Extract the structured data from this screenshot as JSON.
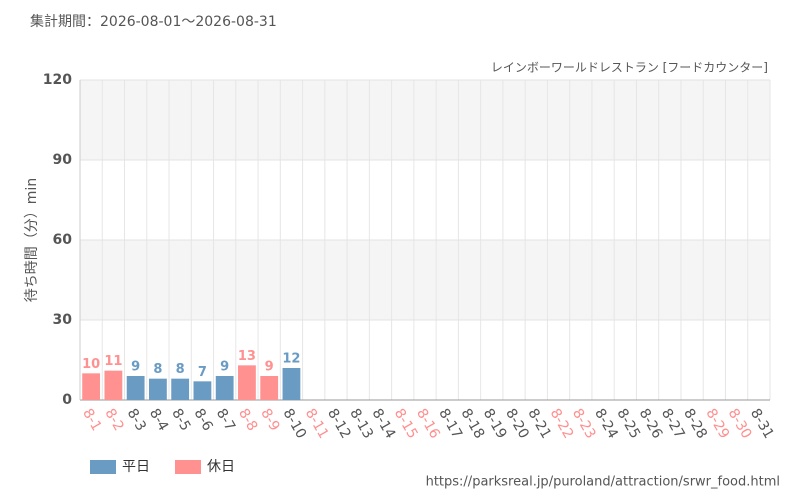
{
  "chart_data": {
    "type": "bar",
    "title": "集計期間：2026-08-01～2026-08-31",
    "subtitle": "レインボーワールドレストラン [フードカウンター]",
    "y_label": "待ち時間（分）min",
    "source": "https://parksreal.jp/puroland/attraction/srwr_food.html",
    "categories": [
      "8-1",
      "8-2",
      "8-3",
      "8-4",
      "8-5",
      "8-6",
      "8-7",
      "8-8",
      "8-9",
      "8-10",
      "8-11",
      "8-12",
      "8-13",
      "8-14",
      "8-15",
      "8-16",
      "8-17",
      "8-18",
      "8-19",
      "8-20",
      "8-21",
      "8-22",
      "8-23",
      "8-24",
      "8-25",
      "8-26",
      "8-27",
      "8-28",
      "8-29",
      "8-30",
      "8-31"
    ],
    "category_colors": [
      "#ff8f8f",
      "#ff8f8f",
      "#555555",
      "#555555",
      "#555555",
      "#555555",
      "#555555",
      "#ff8f8f",
      "#ff8f8f",
      "#555555",
      "#ff8f8f",
      "#555555",
      "#555555",
      "#555555",
      "#ff8f8f",
      "#ff8f8f",
      "#555555",
      "#555555",
      "#555555",
      "#555555",
      "#555555",
      "#ff8f8f",
      "#ff8f8f",
      "#555555",
      "#555555",
      "#555555",
      "#555555",
      "#555555",
      "#ff8f8f",
      "#ff8f8f",
      "#555555"
    ],
    "series": [
      {
        "name": "平日",
        "color": "#6a9bc3",
        "values": [
          null,
          null,
          9,
          8,
          8,
          7,
          9,
          null,
          null,
          12,
          null,
          null,
          null,
          null,
          null,
          null,
          null,
          null,
          null,
          null,
          null,
          null,
          null,
          null,
          null,
          null,
          null,
          null,
          null,
          null,
          null
        ]
      },
      {
        "name": "休日",
        "color": "#ff9191",
        "values": [
          10,
          11,
          null,
          null,
          null,
          null,
          null,
          13,
          9,
          null,
          null,
          null,
          null,
          null,
          null,
          null,
          null,
          null,
          null,
          null,
          null,
          null,
          null,
          null,
          null,
          null,
          null,
          null,
          null,
          null,
          null
        ]
      }
    ],
    "ylim": [
      0,
      120
    ],
    "yticks": [
      0,
      30,
      60,
      90,
      120
    ],
    "grid": true,
    "legend": "bottom-left"
  }
}
